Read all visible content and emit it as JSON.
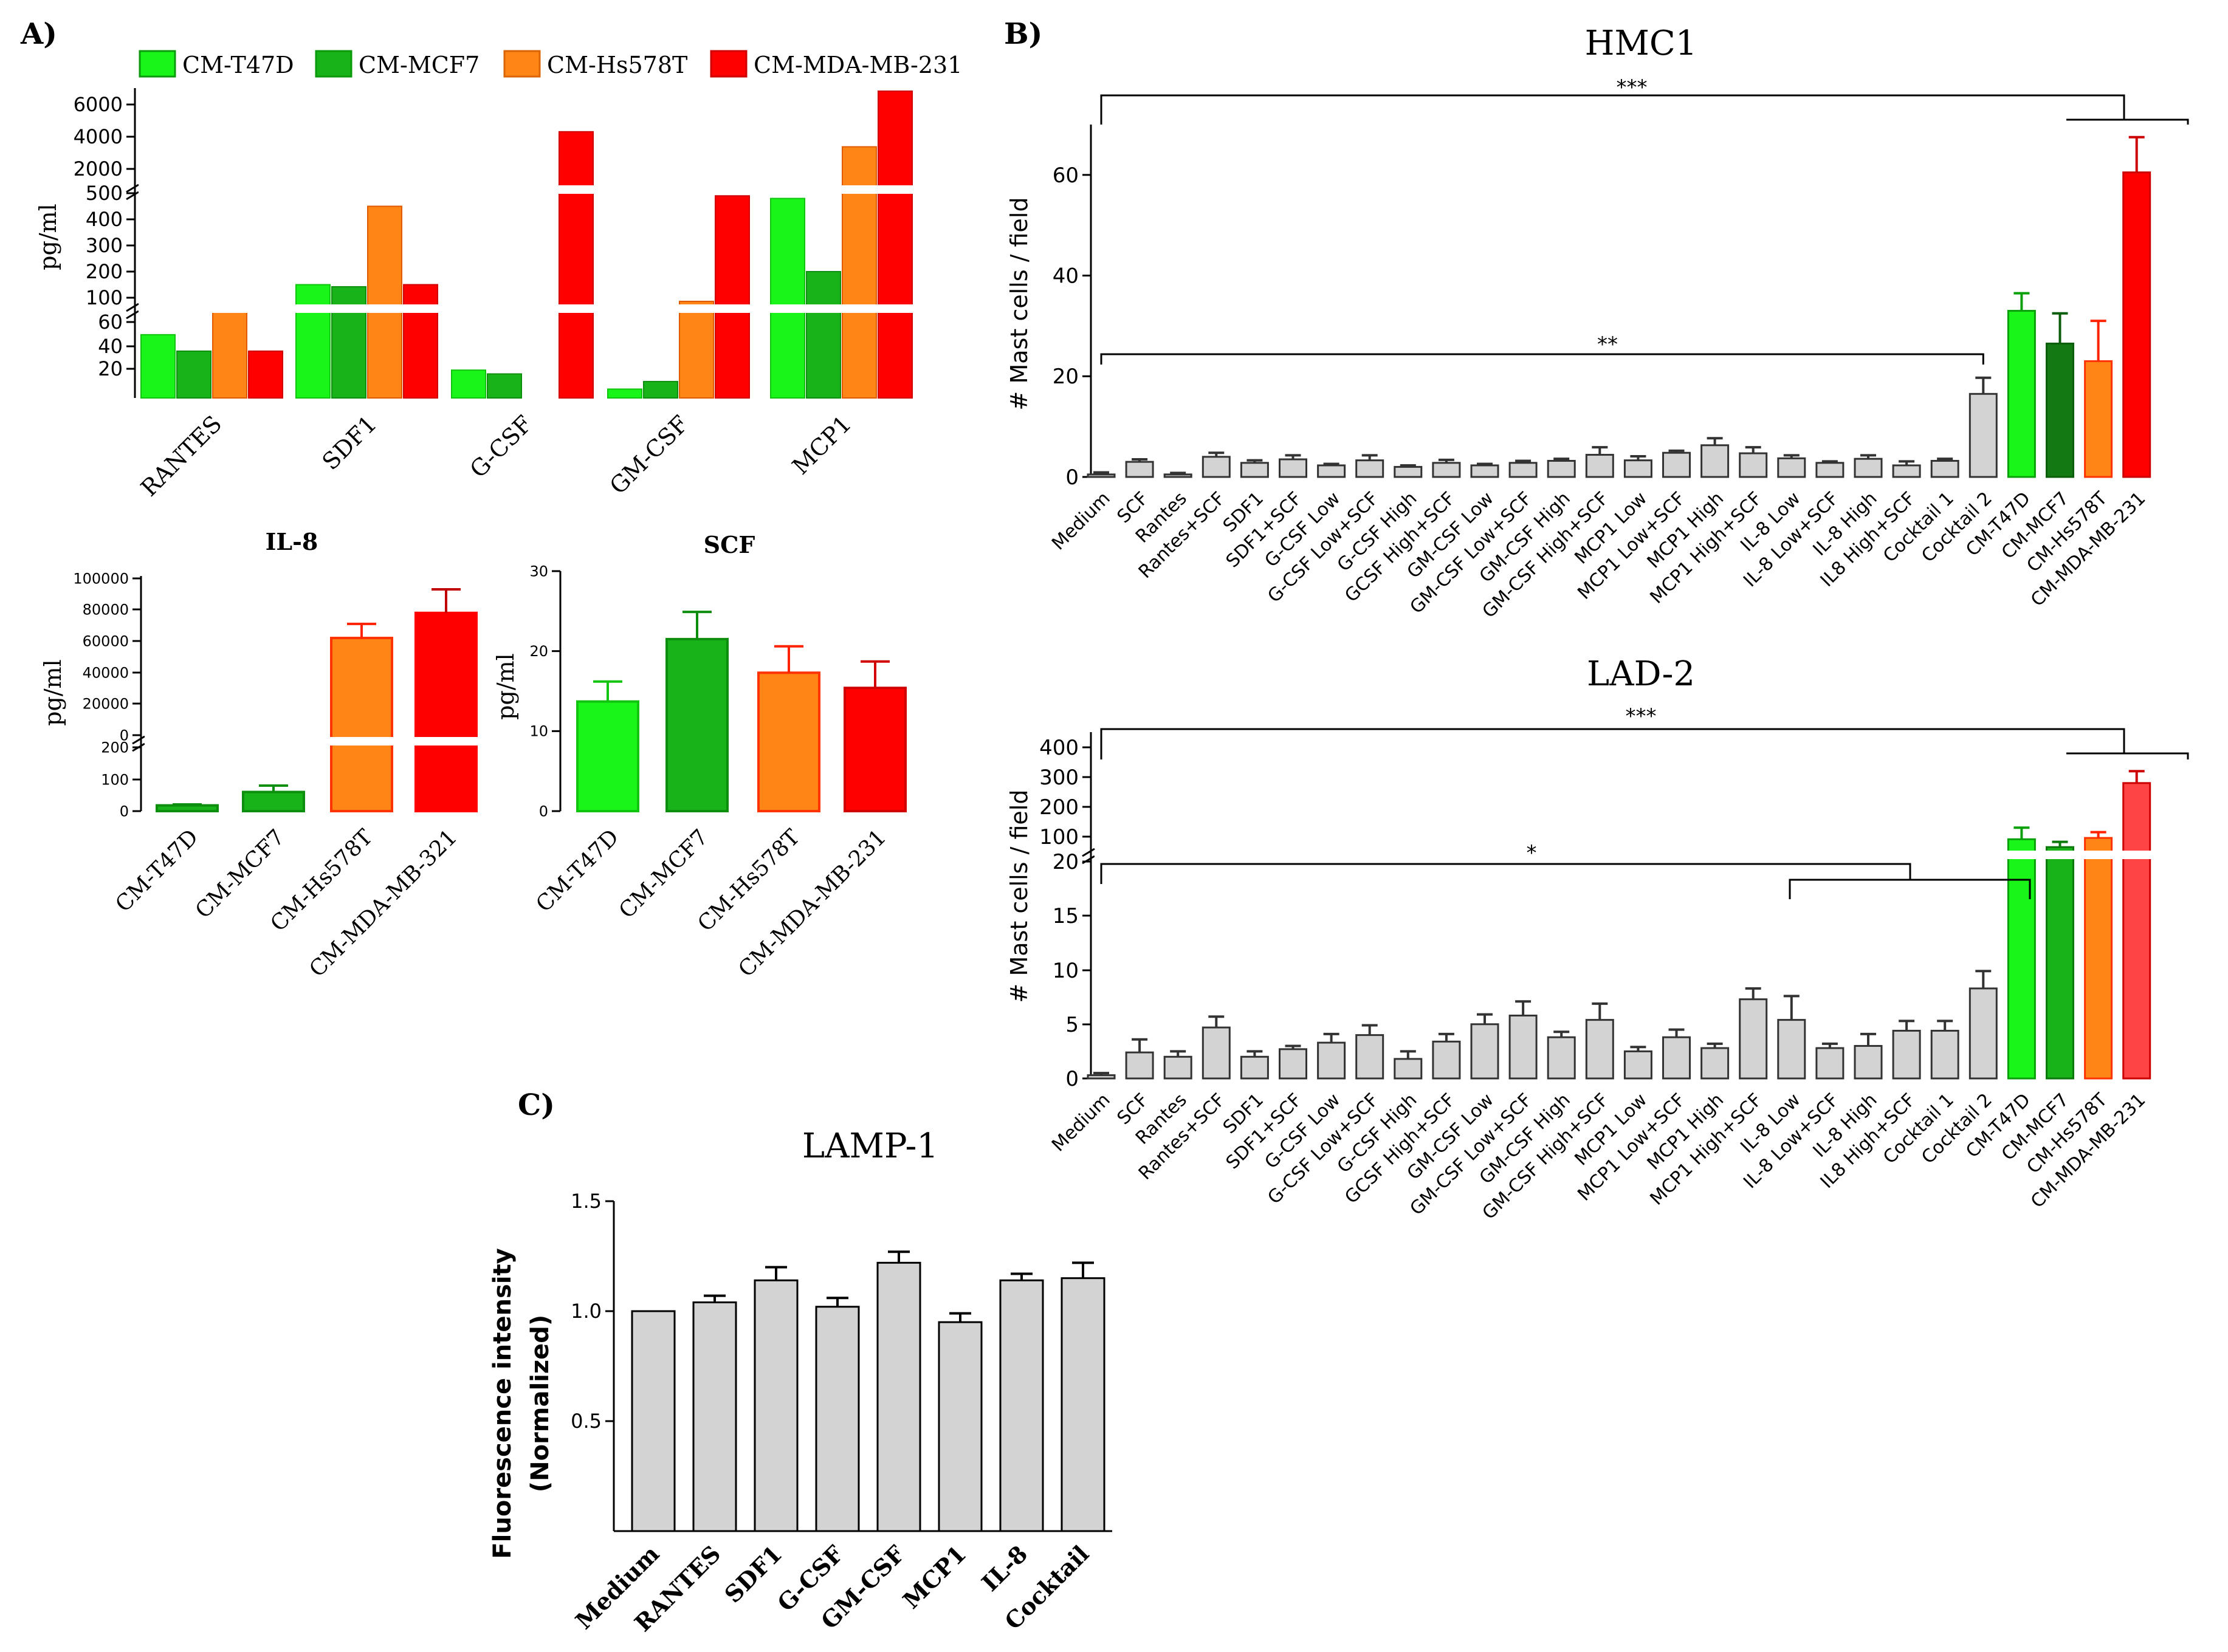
{
  "panels": {
    "a_label": "A)",
    "b_label": "B)",
    "c_label": "C)"
  },
  "colors": {
    "t47d": "#19f519",
    "mcf7": "#18b318",
    "mcf7_dark": "#137a13",
    "hs578t": "#ff8616",
    "mda": "#ff0000",
    "mda_light": "#ff4444",
    "gray": "#d3d3d3"
  },
  "chart_data": [
    {
      "id": "A_cytokines",
      "type": "bar",
      "title": "",
      "ylabel": "pg/ml",
      "legend": [
        "CM-T47D",
        "CM-MCF7",
        "CM-Hs578T",
        "CM-MDA-MB-231"
      ],
      "categories": [
        "RANTES",
        "SDF1",
        "G-CSF",
        "GM-CSF",
        "MCP1"
      ],
      "series": [
        {
          "name": "CM-T47D",
          "values": [
            50,
            150,
            22,
            7,
            480
          ]
        },
        {
          "name": "CM-MCF7",
          "values": [
            37,
            142,
            19,
            13,
            200
          ]
        },
        {
          "name": "CM-Hs578T",
          "values": [
            70,
            450,
            0,
            90,
            3300
          ]
        },
        {
          "name": "CM-MDA-MB-231",
          "values": [
            37,
            150,
            4200,
            490,
            6800
          ]
        }
      ],
      "y_ticks_low": [
        "20",
        "40",
        "60"
      ],
      "y_ticks_mid": [
        "100",
        "200",
        "300",
        "400",
        "500"
      ],
      "y_ticks_high": [
        "2000",
        "4000",
        "6000"
      ]
    },
    {
      "id": "A_IL8",
      "type": "bar",
      "title": "IL-8",
      "ylabel": "pg/ml",
      "categories": [
        "CM-T47D",
        "CM-MCF7",
        "CM-Hs578T",
        "CM-MDA-MB-321"
      ],
      "values": [
        18,
        60,
        62000,
        78000
      ],
      "errors": [
        3,
        20,
        9000,
        15000
      ],
      "y_ticks_low": [
        "0",
        "100",
        "200"
      ],
      "y_ticks_high": [
        "0",
        "20000",
        "40000",
        "60000",
        "80000",
        "100000"
      ]
    },
    {
      "id": "A_SCF",
      "type": "bar",
      "title": "SCF",
      "ylabel": "pg/ml",
      "categories": [
        "CM-T47D",
        "CM-MCF7",
        "CM-Hs578T",
        "CM-MDA-MB-231"
      ],
      "values": [
        13.7,
        21.5,
        17.3,
        15.4
      ],
      "errors": [
        2.5,
        3.4,
        3.3,
        3.3
      ],
      "ylim": [
        0,
        30
      ],
      "y_ticks": [
        "0",
        "10",
        "20",
        "30"
      ]
    },
    {
      "id": "B_HMC1",
      "type": "bar",
      "title": "HMC1",
      "ylabel": "# Mast cells / field",
      "categories": [
        "Medium",
        "SCF",
        "Rantes",
        "Rantes+SCF",
        "SDF1",
        "SDF1+SCF",
        "G-CSF Low",
        "G-CSF Low+SCF",
        "G-CSF High",
        "GCSF High+SCF",
        "GM-CSF Low",
        "GM-CSF Low+SCF",
        "GM-CSF High",
        "GM-CSF High+SCF",
        "MCP1 Low",
        "MCP1 Low+SCF",
        "MCP1 High",
        "MCP1 High+SCF",
        "IL-8 Low",
        "IL-8 Low+SCF",
        "IL-8 High",
        "IL8 High+SCF",
        "Cocktail 1",
        "Cocktail 2",
        "CM-T47D",
        "CM-MCF7",
        "CM-Hs578T",
        "CM-MDA-MB-231"
      ],
      "values": [
        0.5,
        3,
        0.5,
        4,
        2.8,
        3.5,
        2.3,
        3.3,
        2,
        2.8,
        2.3,
        2.8,
        3.2,
        4.4,
        3.3,
        4.8,
        6.3,
        4.7,
        3.7,
        2.8,
        3.6,
        2.3,
        3.2,
        16.5,
        33,
        26.5,
        23,
        60.5
      ],
      "errors": [
        0.4,
        0.5,
        0.3,
        0.8,
        0.5,
        0.8,
        0.3,
        1,
        0.3,
        0.6,
        0.3,
        0.4,
        0.4,
        1.5,
        0.8,
        0.4,
        1.4,
        1.2,
        0.6,
        0.3,
        0.7,
        0.8,
        0.4,
        3.2,
        3.5,
        6,
        8,
        7
      ],
      "ylim": [
        0,
        70
      ],
      "y_ticks": [
        "0",
        "20",
        "40",
        "60"
      ],
      "significance": [
        "***",
        "**"
      ]
    },
    {
      "id": "B_LAD2",
      "type": "bar",
      "title": "LAD-2",
      "ylabel": "# Mast cells / field",
      "categories": [
        "Medium",
        "SCF",
        "Rantes",
        "Rantes+SCF",
        "SDF1",
        "SDF1+SCF",
        "G-CSF Low",
        "G-CSF Low+SCF",
        "G-CSF High",
        "GCSF High+SCF",
        "GM-CSF Low",
        "GM-CSF Low+SCF",
        "GM-CSF High",
        "GM-CSF High+SCF",
        "MCP1 Low",
        "MCP1 Low+SCF",
        "MCP1 High",
        "MCP1 High+SCF",
        "IL-8 Low",
        "IL-8 Low+SCF",
        "IL-8 High",
        "IL8 High+SCF",
        "Cocktail 1",
        "Cocktail 2",
        "CM-T47D",
        "CM-MCF7",
        "CM-Hs578T",
        "CM-MDA-MB-231"
      ],
      "values": [
        0.3,
        2.4,
        2,
        4.7,
        2,
        2.7,
        3.3,
        4,
        1.8,
        3.4,
        5,
        5.8,
        3.8,
        5.4,
        2.5,
        3.8,
        2.8,
        7.3,
        5.4,
        2.8,
        3,
        4.4,
        4.4,
        8.3,
        90,
        60,
        95,
        280
      ],
      "errors": [
        0.2,
        1.2,
        0.5,
        1,
        0.5,
        0.3,
        0.8,
        0.9,
        0.7,
        0.7,
        0.9,
        1.3,
        0.5,
        1.5,
        0.4,
        0.7,
        0.4,
        1,
        2.2,
        0.4,
        1.1,
        0.9,
        0.9,
        1.6,
        40,
        20,
        20,
        40
      ],
      "y_ticks_low": [
        "0",
        "5",
        "10",
        "15",
        "20"
      ],
      "y_ticks_high": [
        "100",
        "200",
        "300",
        "400"
      ],
      "significance": [
        "***",
        "*"
      ]
    },
    {
      "id": "C_LAMP1",
      "type": "bar",
      "title": "LAMP-1",
      "ylabel": "Fluorescence intensity (Normalized)",
      "ylabel_line1": "Fluorescence intensity",
      "ylabel_line2": "(Normalized)",
      "categories": [
        "Medium",
        "RANTES",
        "SDF1",
        "G-CSF",
        "GM-CSF",
        "MCP1",
        "IL-8",
        "Cocktail"
      ],
      "values": [
        1.0,
        1.04,
        1.14,
        1.02,
        1.22,
        0.95,
        1.14,
        1.15
      ],
      "errors": [
        0,
        0.03,
        0.06,
        0.04,
        0.05,
        0.04,
        0.03,
        0.07
      ],
      "ylim": [
        0,
        1.5
      ],
      "y_ticks": [
        "0.5",
        "1.0",
        "1.5"
      ]
    }
  ]
}
